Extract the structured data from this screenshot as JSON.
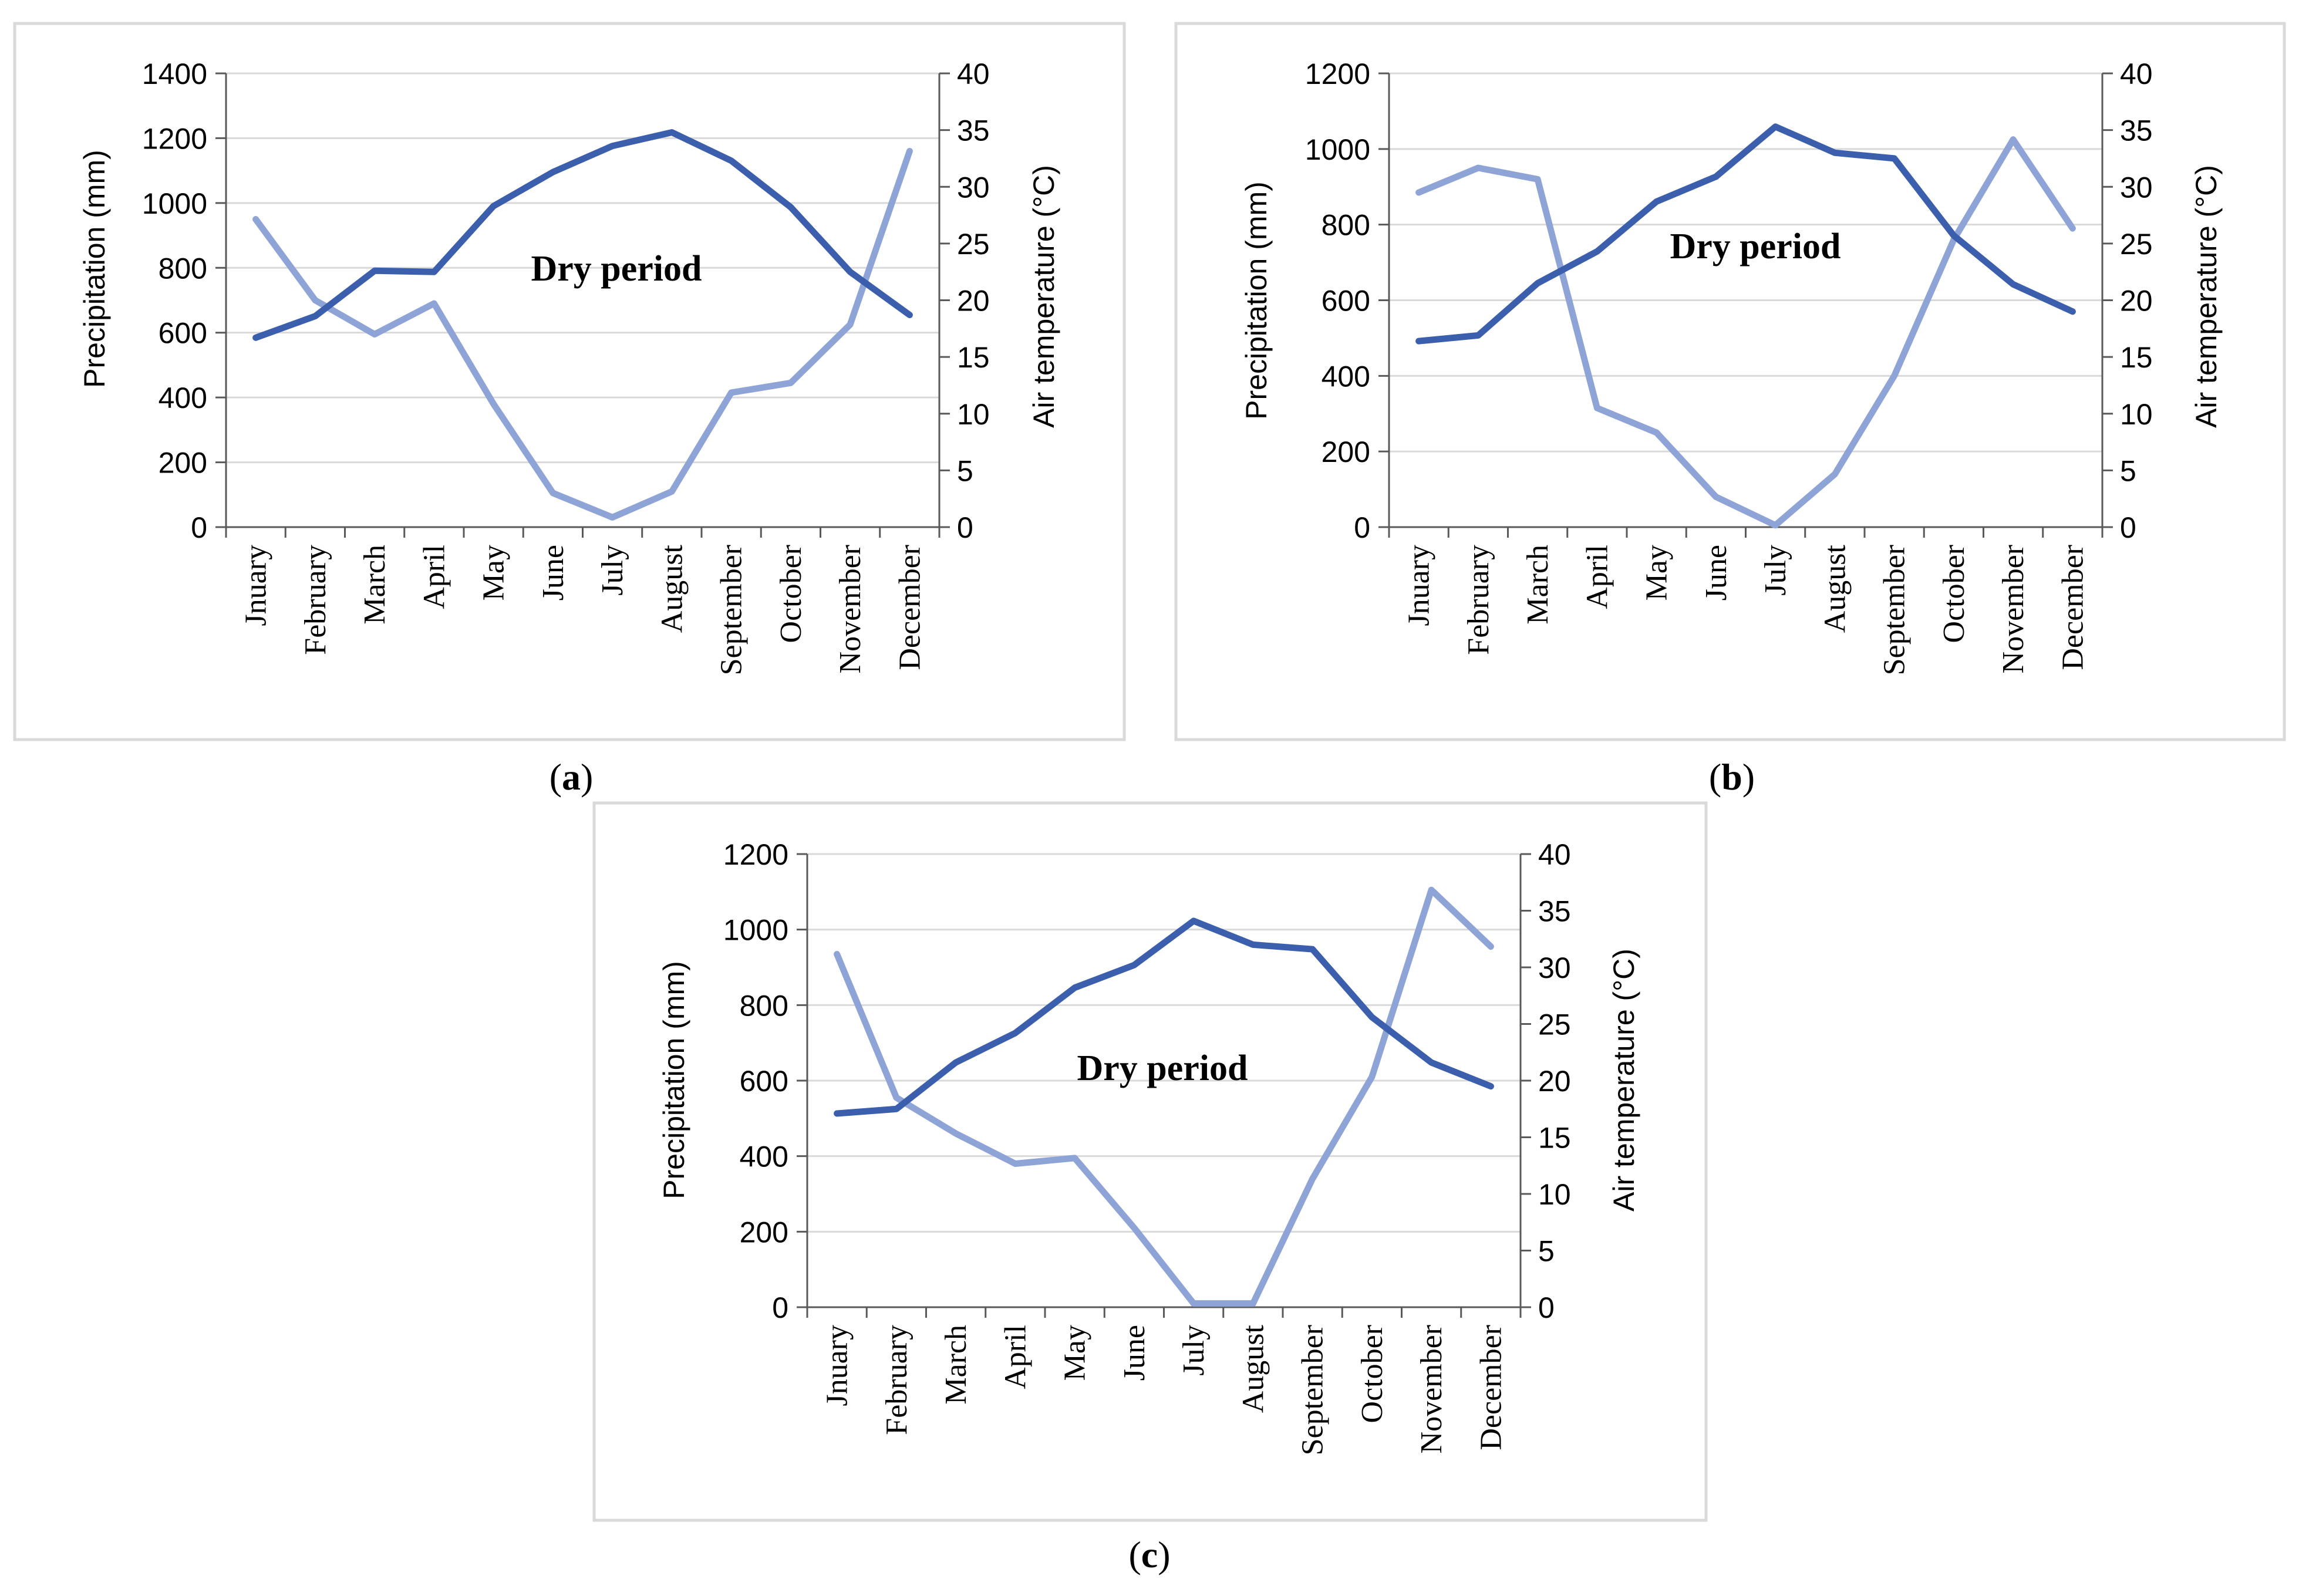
{
  "chart_data": [
    {
      "panel_label": "a",
      "type": "line",
      "categories": [
        "Jnuary",
        "February",
        "March",
        "April",
        "May",
        "June",
        "July",
        "August",
        "September",
        "October",
        "November",
        "December"
      ],
      "ylabel": "Precipitation (mm)",
      "ylabel_right": "Air temperature (°C)",
      "ylim": [
        0,
        1400
      ],
      "yticks": [
        "0",
        "200",
        "400",
        "600",
        "800",
        "1000",
        "1200",
        "1400"
      ],
      "ylim_right": [
        0,
        40
      ],
      "yticks_right": [
        "0",
        "5",
        "10",
        "15",
        "20",
        "25",
        "30",
        "35",
        "40"
      ],
      "annotation": "Dry period",
      "grid": true,
      "series": [
        {
          "name": "Precipitation",
          "axis": "left",
          "color": "#8fa4d6",
          "values": [
            950,
            700,
            595,
            690,
            380,
            105,
            30,
            110,
            415,
            445,
            625,
            1160
          ]
        },
        {
          "name": "Air temperature",
          "axis": "right",
          "color": "#3b5fac",
          "values": [
            16.7,
            18.6,
            22.6,
            22.5,
            28.3,
            31.3,
            33.6,
            34.8,
            32.3,
            28.2,
            22.5,
            18.7
          ]
        }
      ]
    },
    {
      "panel_label": "b",
      "type": "line",
      "categories": [
        "Jnuary",
        "February",
        "March",
        "April",
        "May",
        "June",
        "July",
        "August",
        "September",
        "October",
        "November",
        "December"
      ],
      "ylabel": "Precipitation (mm)",
      "ylabel_right": "Air temperature (°C)",
      "ylim": [
        0,
        1200
      ],
      "yticks": [
        "0",
        "200",
        "400",
        "600",
        "800",
        "1000",
        "1200"
      ],
      "ylim_right": [
        0,
        40
      ],
      "yticks_right": [
        "0",
        "5",
        "10",
        "15",
        "20",
        "25",
        "30",
        "35",
        "40"
      ],
      "annotation": "Dry period",
      "grid": true,
      "series": [
        {
          "name": "Precipitation",
          "axis": "left",
          "color": "#8fa4d6",
          "values": [
            885,
            950,
            920,
            315,
            250,
            80,
            5,
            140,
            400,
            760,
            1025,
            790
          ]
        },
        {
          "name": "Air temperature",
          "axis": "right",
          "color": "#3b5fac",
          "values": [
            16.4,
            16.9,
            21.5,
            24.3,
            28.7,
            30.9,
            35.3,
            33.0,
            32.5,
            25.7,
            21.4,
            19.0
          ]
        }
      ]
    },
    {
      "panel_label": "c",
      "type": "line",
      "categories": [
        "Jnuary",
        "February",
        "March",
        "April",
        "May",
        "June",
        "July",
        "August",
        "September",
        "October",
        "November",
        "December"
      ],
      "ylabel": "Precipitation (mm)",
      "ylabel_right": "Air temperature (°C)",
      "ylim": [
        0,
        1200
      ],
      "yticks": [
        "0",
        "200",
        "400",
        "600",
        "800",
        "1000",
        "1200"
      ],
      "ylim_right": [
        0,
        40
      ],
      "yticks_right": [
        "0",
        "5",
        "10",
        "15",
        "20",
        "25",
        "30",
        "35",
        "40"
      ],
      "annotation": "Dry period",
      "grid": true,
      "series": [
        {
          "name": "Precipitation",
          "axis": "left",
          "color": "#8fa4d6",
          "values": [
            935,
            555,
            460,
            380,
            395,
            210,
            10,
            10,
            340,
            610,
            1105,
            955
          ]
        },
        {
          "name": "Air temperature",
          "axis": "right",
          "color": "#3b5fac",
          "values": [
            17.1,
            17.5,
            21.6,
            24.2,
            28.2,
            30.2,
            34.1,
            32.0,
            31.6,
            25.6,
            21.6,
            19.5
          ]
        }
      ]
    }
  ]
}
